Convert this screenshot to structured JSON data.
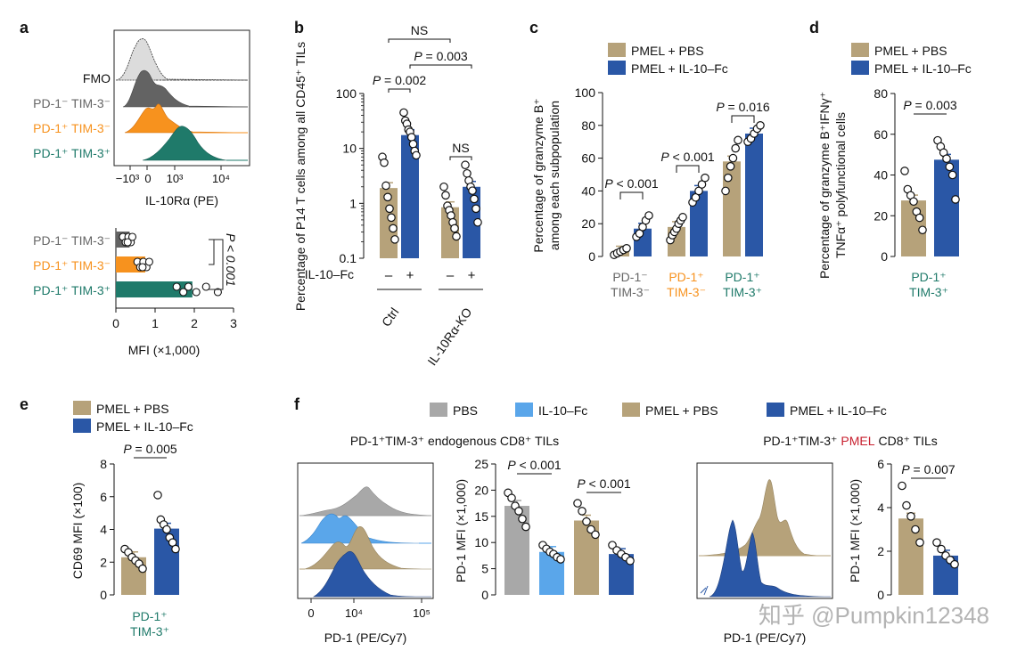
{
  "colors": {
    "pbs": "#a8a8a8",
    "il10": "#5aa6ea",
    "pmel_pbs": "#b6a27a",
    "pmel_il10": "#2a57a6",
    "fmo": "#dcdcdc",
    "pd1neg": "#636363",
    "pd1pos_tim3neg": "#f7921e",
    "pd1pos_tim3pos": "#1f7a6a",
    "pmel_red": "#c8202f"
  },
  "watermark": "知乎 @Pumpkin12348",
  "panel_a": {
    "letter": "a",
    "hist_labels": [
      "FMO",
      "PD-1⁻ TIM-3⁻",
      "PD-1⁺ TIM-3⁻",
      "PD-1⁺ TIM-3⁺"
    ],
    "hist_xticks": [
      "−10³",
      "0",
      "10³",
      "10⁴"
    ],
    "hist_xlabel": "IL-10Rα (PE)",
    "chart_data": {
      "type": "bar",
      "orientation": "horizontal",
      "categories": [
        "PD-1⁻ TIM-3⁻",
        "PD-1⁺ TIM-3⁻",
        "PD-1⁺ TIM-3⁺"
      ],
      "values": [
        0.35,
        0.75,
        1.95
      ],
      "points": [
        [
          0.18,
          0.25,
          0.32,
          0.38,
          0.42,
          0.3
        ],
        [
          0.55,
          0.62,
          0.7,
          0.78,
          0.85,
          0.68
        ],
        [
          1.55,
          1.72,
          1.85,
          2.05,
          2.3,
          2.6
        ]
      ],
      "xlim": [
        0,
        3
      ],
      "xticks": [
        "0",
        "1",
        "2",
        "3"
      ],
      "xlabel": "MFI (×1,000)",
      "annotation": "P < 0.001"
    }
  },
  "panel_b": {
    "letter": "b",
    "ylabel": "Percentage of P14 T cells among all CD45⁺ TILs",
    "yticks": [
      "0.1",
      "1",
      "10",
      "100"
    ],
    "row_label": "IL-10–Fc",
    "signs": [
      "–",
      "+",
      "–",
      "+"
    ],
    "groups": [
      "Ctrl",
      "IL-10Rα-KO"
    ],
    "chart_data": {
      "type": "bar",
      "yscale": "log",
      "ylim": [
        0.1,
        100
      ],
      "bars": [
        1.9,
        17.5,
        0.85,
        2.0
      ],
      "points": [
        [
          7,
          5.5,
          2.1,
          1.3,
          0.8,
          0.55,
          0.35,
          0.22
        ],
        [
          45,
          32,
          28,
          22,
          20,
          16,
          12,
          9,
          7.5
        ],
        [
          2.0,
          1.4,
          0.9,
          0.75,
          0.6,
          0.45,
          0.35,
          0.25
        ],
        [
          5,
          3.5,
          2.6,
          2.0,
          1.7,
          1.2,
          0.8,
          0.45
        ]
      ],
      "annotations": [
        "P = 0.002",
        "NS",
        "P = 0.003",
        "NS"
      ]
    }
  },
  "panel_c": {
    "letter": "c",
    "legend": [
      "PMEL + PBS",
      "PMEL + IL-10–Fc"
    ],
    "ylabel_1": "Percentage of granzyme B⁺",
    "ylabel_2": "among each subpopulation",
    "yticks": [
      "0",
      "20",
      "40",
      "60",
      "80",
      "100"
    ],
    "group_labels_1": [
      "PD-1⁻",
      "PD-1⁺",
      "PD-1⁺"
    ],
    "group_labels_2": [
      "TIM-3⁻",
      "TIM-3⁻",
      "TIM-3⁺"
    ],
    "chart_data": {
      "type": "bar",
      "ylim": [
        0,
        100
      ],
      "bars": [
        3,
        17,
        18,
        40,
        58,
        75
      ],
      "points": [
        [
          1,
          2,
          3,
          4,
          5
        ],
        [
          12,
          14,
          18,
          22,
          25
        ],
        [
          10,
          13,
          15,
          17,
          20,
          22,
          24
        ],
        [
          33,
          36,
          40,
          44,
          48
        ],
        [
          40,
          48,
          55,
          60,
          66,
          71
        ],
        [
          70,
          72,
          75,
          78,
          80
        ]
      ],
      "annotations": [
        "P < 0.001",
        "P < 0.001",
        "P = 0.016"
      ]
    }
  },
  "panel_d": {
    "letter": "d",
    "legend": [
      "PMEL + PBS",
      "PMEL + IL-10–Fc"
    ],
    "ylabel_1": "Percentage of granzyme B⁺IFNγ⁺",
    "ylabel_2": "TNFα⁺ polyfunctional cells",
    "yticks": [
      "0",
      "20",
      "40",
      "60",
      "80"
    ],
    "group_1": "PD-1⁺",
    "group_2": "TIM-3⁺",
    "chart_data": {
      "type": "bar",
      "ylim": [
        0,
        80
      ],
      "bars": [
        27.5,
        47.5
      ],
      "points": [
        [
          42,
          33,
          30,
          27,
          22,
          19,
          13
        ],
        [
          57,
          54,
          51,
          48,
          44,
          40,
          28
        ]
      ],
      "annotation": "P = 0.003"
    }
  },
  "panel_e": {
    "letter": "e",
    "legend": [
      "PMEL + PBS",
      "PMEL + IL-10–Fc"
    ],
    "ylabel": "CD69 MFI (×100)",
    "yticks": [
      "0",
      "2",
      "4",
      "6",
      "8"
    ],
    "group_1": "PD-1⁺",
    "group_2": "TIM-3⁺",
    "chart_data": {
      "type": "bar",
      "ylim": [
        0,
        8
      ],
      "bars": [
        2.3,
        4.05
      ],
      "points": [
        [
          2.8,
          2.6,
          2.3,
          2.1,
          1.9,
          1.6
        ],
        [
          6.1,
          4.6,
          4.3,
          4.0,
          3.5,
          3.2,
          2.8
        ]
      ],
      "annotation": "P = 0.005"
    }
  },
  "panel_f": {
    "letter": "f",
    "legend": [
      "PBS",
      "IL-10–Fc",
      "PMEL + PBS",
      "PMEL + IL-10–Fc"
    ],
    "left_title": "PD-1⁺TIM-3⁺ endogenous CD8⁺ TILs",
    "right_title_a": "PD-1⁺TIM-3⁺",
    "right_title_b": "PMEL",
    "right_title_c": "CD8⁺ TILs",
    "hist_xticks": [
      "0",
      "10⁴",
      "10⁵"
    ],
    "hist_xlabel": "PD-1 (PE/Cy7)",
    "left_ylabel": "PD-1 MFI (×1,000)",
    "left_yticks": [
      "0",
      "5",
      "10",
      "15",
      "20",
      "25"
    ],
    "right_ylabel": "PD-1 MFI (×1,000)",
    "right_yticks": [
      "0",
      "2",
      "4",
      "6"
    ],
    "chart_data": [
      {
        "type": "bar",
        "categories": [
          "PBS",
          "IL-10–Fc",
          "PMEL + PBS",
          "PMEL + IL-10–Fc"
        ],
        "ylim": [
          0,
          25
        ],
        "bars": [
          17,
          8.2,
          14.2,
          7.8
        ],
        "points": [
          [
            19.5,
            18.5,
            17,
            16,
            14.5,
            13
          ],
          [
            9.5,
            8.8,
            8.2,
            7.8,
            7.2,
            6.8
          ],
          [
            17.5,
            16,
            14,
            12.5,
            11.5
          ],
          [
            9.5,
            8.5,
            7.8,
            7.2,
            6.5
          ]
        ],
        "annotations": [
          "P < 0.001",
          "P < 0.001"
        ]
      },
      {
        "type": "bar",
        "categories": [
          "PMEL + PBS",
          "PMEL + IL-10–Fc"
        ],
        "ylim": [
          0,
          6
        ],
        "bars": [
          3.5,
          1.8
        ],
        "points": [
          [
            5.0,
            4.1,
            3.6,
            3.0,
            2.4
          ],
          [
            2.4,
            2.1,
            1.8,
            1.6,
            1.4
          ]
        ],
        "annotation": "P = 0.007"
      }
    ]
  }
}
